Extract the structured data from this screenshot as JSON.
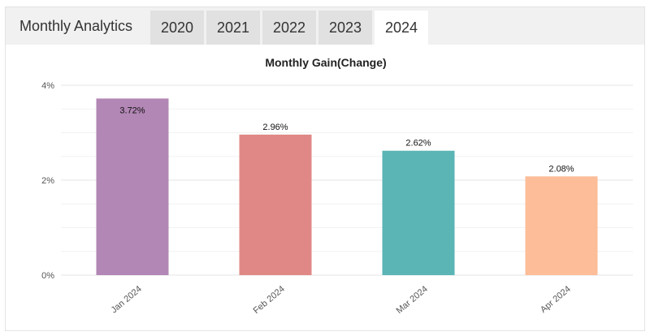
{
  "header": {
    "title": "Monthly Analytics",
    "tabs": [
      {
        "label": "2020",
        "active": false
      },
      {
        "label": "2021",
        "active": false
      },
      {
        "label": "2022",
        "active": false
      },
      {
        "label": "2023",
        "active": false
      },
      {
        "label": "2024",
        "active": true
      }
    ]
  },
  "chart_data": {
    "type": "bar",
    "title": "Monthly Gain(Change)",
    "xlabel": "",
    "ylabel": "",
    "categories": [
      "Jan 2024",
      "Feb 2024",
      "Mar 2024",
      "Apr 2024"
    ],
    "values": [
      3.72,
      2.96,
      2.62,
      2.08
    ],
    "data_labels": [
      "3.72%",
      "2.96%",
      "2.62%",
      "2.08%"
    ],
    "colors": [
      "#b286b5",
      "#e08886",
      "#5bb5b5",
      "#fcbd98"
    ],
    "ylim": [
      0,
      4
    ],
    "yticks": [
      0,
      2,
      4
    ],
    "ytick_labels": [
      "0%",
      "2%",
      "4%"
    ],
    "grid": true
  }
}
